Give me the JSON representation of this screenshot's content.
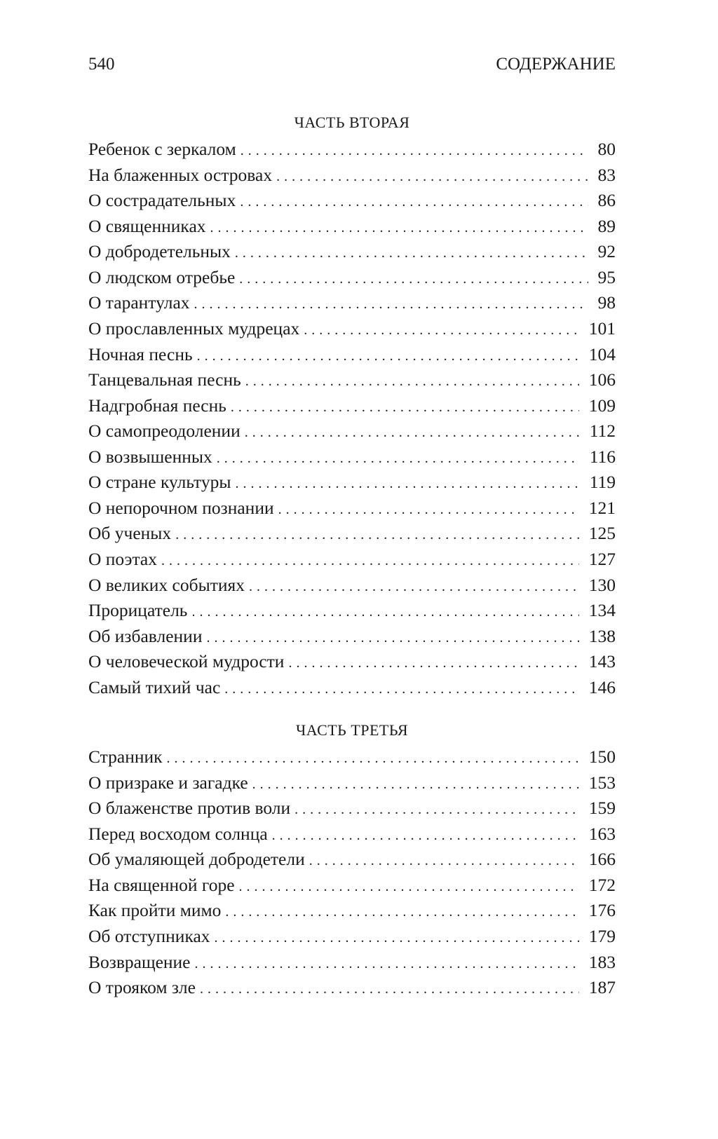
{
  "header": {
    "page_number": "540",
    "running_title": "СОДЕРЖАНИЕ"
  },
  "parts": [
    {
      "title": "ЧАСТЬ ВТОРАЯ",
      "entries": [
        {
          "title": "Ребенок с зеркалом",
          "page": "80"
        },
        {
          "title": "На блаженных островах",
          "page": "83"
        },
        {
          "title": "О сострадательных",
          "page": "86"
        },
        {
          "title": "О священниках",
          "page": "89"
        },
        {
          "title": "О добродетельных",
          "page": "92"
        },
        {
          "title": "О людском отребье",
          "page": "95"
        },
        {
          "title": "О тарантулах",
          "page": "98"
        },
        {
          "title": "О прославленных мудрецах",
          "page": "101"
        },
        {
          "title": "Ночная песнь",
          "page": "104"
        },
        {
          "title": "Танцевальная песнь",
          "page": "106"
        },
        {
          "title": "Надгробная песнь",
          "page": "109"
        },
        {
          "title": "О самопреодолении",
          "page": "112"
        },
        {
          "title": "О возвышенных",
          "page": "116"
        },
        {
          "title": "О стране культуры",
          "page": "119"
        },
        {
          "title": "О непорочном познании",
          "page": "121"
        },
        {
          "title": "Об ученых",
          "page": "125"
        },
        {
          "title": "О поэтах",
          "page": "127"
        },
        {
          "title": "О великих событиях",
          "page": "130"
        },
        {
          "title": "Прорицатель",
          "page": "134"
        },
        {
          "title": "Об избавлении",
          "page": "138"
        },
        {
          "title": "О человеческой мудрости",
          "page": "143"
        },
        {
          "title": "Самый тихий час",
          "page": "146"
        }
      ]
    },
    {
      "title": "ЧАСТЬ ТРЕТЬЯ",
      "entries": [
        {
          "title": "Странник",
          "page": "150"
        },
        {
          "title": "О призраке и загадке",
          "page": "153"
        },
        {
          "title": "О блаженстве против воли",
          "page": "159"
        },
        {
          "title": "Перед восходом солнца",
          "page": "163"
        },
        {
          "title": "Об умаляющей добродетели",
          "page": "166"
        },
        {
          "title": "На священной горе",
          "page": "172"
        },
        {
          "title": "Как пройти мимо",
          "page": "176"
        },
        {
          "title": "Об отступниках",
          "page": "179"
        },
        {
          "title": "Возвращение",
          "page": "183"
        },
        {
          "title": "О трояком зле",
          "page": "187"
        }
      ]
    }
  ]
}
